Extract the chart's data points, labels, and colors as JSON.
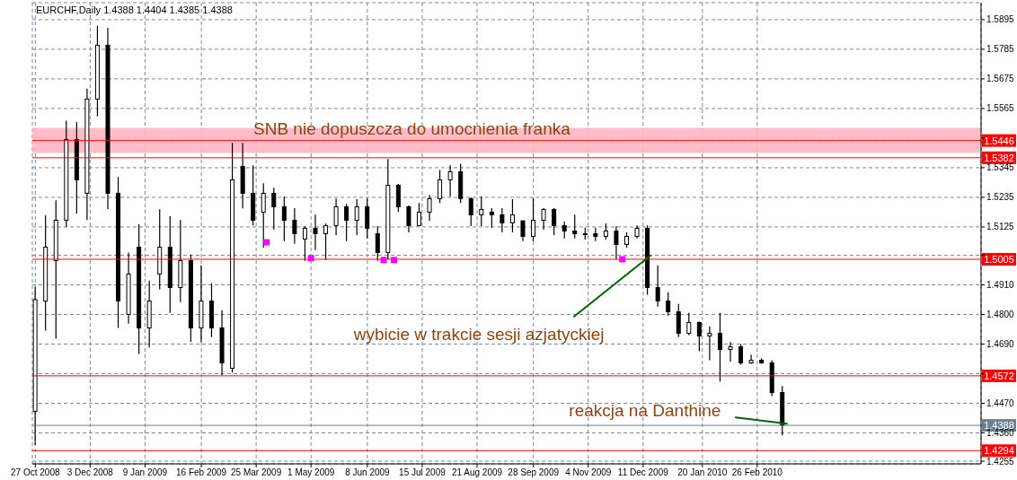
{
  "chart_data": {
    "type": "candlestick",
    "title": "EURCHF,Daily  1.4388 1.4404 1.4385 1.4388",
    "color": "#000000",
    "x": [
      "2008-10-27",
      "2008-11-03",
      "2008-11-10",
      "2008-11-17",
      "2008-11-24",
      "2008-12-01",
      "2008-12-08",
      "2008-12-15",
      "2008-12-22",
      "2008-12-29",
      "2009-01-05",
      "2009-01-12",
      "2009-01-19",
      "2009-01-26",
      "2009-02-02",
      "2009-02-09",
      "2009-02-16",
      "2009-02-23",
      "2009-03-02",
      "2009-03-09",
      "2009-03-16",
      "2009-03-23",
      "2009-03-30",
      "2009-04-06",
      "2009-04-13",
      "2009-04-20",
      "2009-04-27",
      "2009-05-04",
      "2009-05-11",
      "2009-05-18",
      "2009-05-25",
      "2009-06-01",
      "2009-06-08",
      "2009-06-15",
      "2009-06-22",
      "2009-06-29",
      "2009-07-06",
      "2009-07-13",
      "2009-07-20",
      "2009-07-27",
      "2009-08-03",
      "2009-08-10",
      "2009-08-17",
      "2009-08-24",
      "2009-08-31",
      "2009-09-07",
      "2009-09-14",
      "2009-09-21",
      "2009-09-28",
      "2009-10-05",
      "2009-10-12",
      "2009-10-19",
      "2009-10-26",
      "2009-11-02",
      "2009-11-09",
      "2009-11-16",
      "2009-11-23",
      "2009-11-30",
      "2009-12-07",
      "2009-12-14",
      "2009-12-21",
      "2009-12-28",
      "2010-01-04",
      "2010-01-11",
      "2010-01-18",
      "2010-01-25",
      "2010-02-01",
      "2010-02-08",
      "2010-02-15",
      "2010-02-22",
      "2010-03-01",
      "2010-03-08",
      "2010-03-15"
    ],
    "ohlc": [
      [
        1.444,
        1.4902,
        1.4315,
        1.4855
      ],
      [
        1.485,
        1.5168,
        1.474,
        1.505
      ],
      [
        1.5,
        1.5224,
        1.471,
        1.515
      ],
      [
        1.515,
        1.552,
        1.5125,
        1.545
      ],
      [
        1.545,
        1.5515,
        1.5175,
        1.53
      ],
      [
        1.525,
        1.5639,
        1.5151,
        1.56
      ],
      [
        1.56,
        1.5872,
        1.5536,
        1.58
      ],
      [
        1.58,
        1.5865,
        1.5191,
        1.525
      ],
      [
        1.525,
        1.5311,
        1.475,
        1.485
      ],
      [
        1.48,
        1.503,
        1.4766,
        1.495
      ],
      [
        1.505,
        1.5135,
        1.4653,
        1.475
      ],
      [
        1.475,
        1.4926,
        1.4677,
        1.485
      ],
      [
        1.495,
        1.5191,
        1.4893,
        1.505
      ],
      [
        1.505,
        1.5165,
        1.4806,
        1.49
      ],
      [
        1.49,
        1.5151,
        1.4846,
        1.5
      ],
      [
        1.5,
        1.5022,
        1.4697,
        1.475
      ],
      [
        1.475,
        1.4982,
        1.4697,
        1.485
      ],
      [
        1.485,
        1.4916,
        1.4716,
        1.475
      ],
      [
        1.475,
        1.4816,
        1.4574,
        1.462
      ],
      [
        1.46,
        1.5437,
        1.4584,
        1.53
      ],
      [
        1.535,
        1.5437,
        1.5194,
        1.525
      ],
      [
        1.525,
        1.5354,
        1.5131,
        1.515
      ],
      [
        1.518,
        1.5287,
        1.5048,
        1.525
      ],
      [
        1.525,
        1.5271,
        1.5115,
        1.52
      ],
      [
        1.52,
        1.5238,
        1.5072,
        1.515
      ],
      [
        1.515,
        1.5195,
        1.5062,
        1.51
      ],
      [
        1.508,
        1.5128,
        1.4999,
        1.512
      ],
      [
        1.512,
        1.5171,
        1.5039,
        1.51
      ],
      [
        1.51,
        1.5138,
        1.5002,
        1.513
      ],
      [
        1.513,
        1.5231,
        1.5095,
        1.52
      ],
      [
        1.52,
        1.5211,
        1.5072,
        1.515
      ],
      [
        1.515,
        1.5228,
        1.5095,
        1.52
      ],
      [
        1.52,
        1.5231,
        1.5082,
        1.512
      ],
      [
        1.51,
        1.5128,
        1.4999,
        1.503
      ],
      [
        1.503,
        1.5377,
        1.5005,
        1.528
      ],
      [
        1.528,
        1.5285,
        1.5181,
        1.52
      ],
      [
        1.52,
        1.5205,
        1.5105,
        1.513
      ],
      [
        1.513,
        1.5214,
        1.5128,
        1.518
      ],
      [
        1.518,
        1.5244,
        1.5148,
        1.523
      ],
      [
        1.523,
        1.5337,
        1.5214,
        1.53
      ],
      [
        1.53,
        1.5354,
        1.5238,
        1.533
      ],
      [
        1.533,
        1.536,
        1.5214,
        1.523
      ],
      [
        1.523,
        1.5235,
        1.5128,
        1.517
      ],
      [
        1.517,
        1.5238,
        1.5128,
        1.519
      ],
      [
        1.518,
        1.5195,
        1.5122,
        1.517
      ],
      [
        1.517,
        1.5195,
        1.5105,
        1.514
      ],
      [
        1.514,
        1.5228,
        1.5105,
        1.517
      ],
      [
        1.5148,
        1.5148,
        1.5072,
        1.509
      ],
      [
        1.509,
        1.5231,
        1.5072,
        1.515
      ],
      [
        1.515,
        1.5195,
        1.5115,
        1.519
      ],
      [
        1.519,
        1.5195,
        1.5095,
        1.513
      ],
      [
        1.513,
        1.5145,
        1.5082,
        1.511
      ],
      [
        1.511,
        1.5171,
        1.5082,
        1.51
      ],
      [
        1.51,
        1.5122,
        1.5078,
        1.51
      ],
      [
        1.51,
        1.5122,
        1.5072,
        1.509
      ],
      [
        1.509,
        1.5138,
        1.5078,
        1.511
      ],
      [
        1.511,
        1.5128,
        1.5005,
        1.506
      ],
      [
        1.506,
        1.5105,
        1.5048,
        1.509
      ],
      [
        1.509,
        1.5131,
        1.5082,
        1.512
      ],
      [
        1.512,
        1.5131,
        1.4873,
        1.49
      ],
      [
        1.49,
        1.4982,
        1.4829,
        1.485
      ],
      [
        1.485,
        1.4882,
        1.4796,
        1.481
      ],
      [
        1.481,
        1.4839,
        1.4716,
        1.473
      ],
      [
        1.473,
        1.4806,
        1.4723,
        1.477
      ],
      [
        1.477,
        1.4773,
        1.4663,
        1.472
      ],
      [
        1.472,
        1.4756,
        1.463,
        1.473
      ],
      [
        1.473,
        1.4806,
        1.455,
        1.467
      ],
      [
        1.467,
        1.4697,
        1.4624,
        1.468
      ],
      [
        1.468,
        1.469,
        1.4613,
        1.462
      ],
      [
        1.462,
        1.465,
        1.4617,
        1.463
      ],
      [
        1.463,
        1.4637,
        1.4617,
        1.462
      ],
      [
        1.462,
        1.463,
        1.4497,
        1.451
      ],
      [
        1.451,
        1.4534,
        1.4351,
        1.4388
      ]
    ],
    "series": [
      {
        "type": "scatter",
        "color": "#ff00ff",
        "x": [
          "2009-04-01",
          "2009-05-01",
          "2009-06-19",
          "2009-06-26",
          "2009-11-27"
        ],
        "values": [
          1.5068,
          1.5009,
          1.5002,
          1.5002,
          1.5005
        ]
      }
    ],
    "marker": "square",
    "xlim": [
      "2008-10-25",
      "2010-07-27"
    ],
    "xticks": [
      {
        "value": "2008-10-27",
        "label": "27 Oct 2008"
      },
      {
        "value": "2008-12-03",
        "label": "3 Dec 2008"
      },
      {
        "value": "2009-01-09",
        "label": "9 Jan 2009"
      },
      {
        "value": "2009-02-16",
        "label": "16 Feb 2009"
      },
      {
        "value": "2009-03-25",
        "label": "25 Mar 2009"
      },
      {
        "value": "2009-05-01",
        "label": "1 May 2009"
      },
      {
        "value": "2009-06-08",
        "label": "8 Jun 2009"
      },
      {
        "value": "2009-07-15",
        "label": "15 Jul 2009"
      },
      {
        "value": "2009-08-21",
        "label": "21 Aug 2009"
      },
      {
        "value": "2009-09-28",
        "label": "28 Sep 2009"
      },
      {
        "value": "2009-11-04",
        "label": "4 Nov 2009"
      },
      {
        "value": "2009-12-11",
        "label": "11 Dec 2009"
      },
      {
        "value": "2010-01-20",
        "label": "20 Jan 2010"
      },
      {
        "value": "2010-02-26",
        "label": "26 Feb 2010"
      }
    ],
    "ylim": [
      1.4245,
      1.5958
    ],
    "yticks": [
      1.5895,
      1.5785,
      1.5675,
      1.5565,
      {
        "value": 1.5455,
        "label": null
      },
      1.5345,
      1.5235,
      1.5125,
      {
        "value": 1.502,
        "label": null
      },
      {
        "value": 1.491,
        "label": "1.4910"
      },
      {
        "value": 1.48,
        "label": "1.4800"
      },
      {
        "value": 1.469,
        "label": "1.4690"
      },
      {
        "value": 1.458,
        "label": null
      },
      {
        "value": 1.447,
        "label": "1.4470"
      },
      {
        "value": 1.436,
        "label": "1.4360"
      },
      1.4255
    ],
    "grid": true,
    "ref_lines": [
      {
        "axis": "y",
        "value": 1.5446,
        "label": "1.5446",
        "color": "#ff0000"
      },
      {
        "axis": "y",
        "value": 1.5382,
        "label": "1.5382",
        "color": "#ff0000"
      },
      {
        "axis": "y",
        "value": 1.5005,
        "label": "1.5005",
        "color": "#ff0000"
      },
      {
        "axis": "y",
        "value": 1.4572,
        "label": "1.4572",
        "color": "#ff0000"
      },
      {
        "axis": "y",
        "value": 1.4388,
        "label": "1.4388",
        "color": "#708090"
      },
      {
        "axis": "y",
        "value": 1.4294,
        "label": "1.4294",
        "color": "#ff0000"
      }
    ],
    "bands": [
      {
        "axis": "y",
        "from": 1.54,
        "to": 1.5493,
        "label": "SNB nie dopuszcza do umocnienia franka",
        "color": "#ffb6c1"
      }
    ],
    "annotations": [
      {
        "text": "wybicie w trakcie sesji azjatyckiej",
        "x": "2009-12-16",
        "y": 1.5019
      },
      {
        "text": "reakcja na Danthine",
        "x": "2010-03-18",
        "y": 1.4394
      }
    ]
  }
}
